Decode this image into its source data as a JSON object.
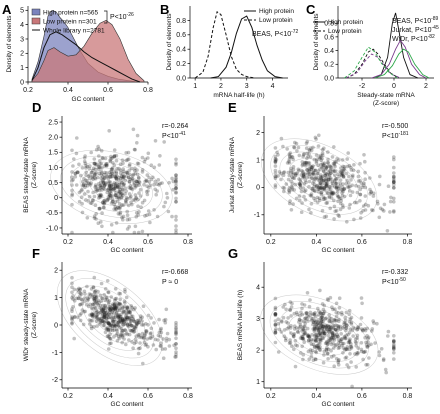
{
  "panels": {
    "A": {
      "label": "A"
    },
    "B": {
      "label": "B"
    },
    "C": {
      "label": "C"
    },
    "D": {
      "label": "D"
    },
    "E": {
      "label": "E"
    },
    "F": {
      "label": "F"
    },
    "G": {
      "label": "G"
    }
  },
  "colors": {
    "high_fill": "#7b83bd",
    "low_fill": "#c9787a",
    "beas": "#111111",
    "jurkat": "#7a3c8c",
    "widr": "#2ea84a"
  },
  "chart_data": [
    {
      "id": "A",
      "type": "area",
      "xlabel": "GC content",
      "ylabel": "Density of elements",
      "xlim": [
        0.2,
        0.8
      ],
      "ylim": [
        0,
        5.3
      ],
      "xticks": [
        "0.2",
        "0.4",
        "0.6",
        "0.8"
      ],
      "yticks": [
        "0",
        "1",
        "2",
        "3",
        "4",
        "5"
      ],
      "bracket": "P<10",
      "bracket_exp": "-26",
      "series": [
        {
          "name": "High protein n=565",
          "style": "filled-blue",
          "x": [
            0.22,
            0.25,
            0.28,
            0.3,
            0.32,
            0.34,
            0.36,
            0.38,
            0.4,
            0.43,
            0.46,
            0.5,
            0.55,
            0.6,
            0.65,
            0.7,
            0.75
          ],
          "y": [
            0.2,
            1.4,
            3.2,
            4.6,
            5.0,
            4.9,
            4.5,
            4.2,
            3.8,
            3.0,
            2.2,
            1.3,
            0.7,
            0.4,
            0.2,
            0.1,
            0.0
          ]
        },
        {
          "name": "Low protein n=301",
          "style": "filled-red",
          "x": [
            0.22,
            0.25,
            0.28,
            0.3,
            0.33,
            0.36,
            0.4,
            0.44,
            0.48,
            0.52,
            0.56,
            0.59,
            0.62,
            0.66,
            0.7,
            0.74,
            0.78
          ],
          "y": [
            0.1,
            0.6,
            1.5,
            2.2,
            2.4,
            2.1,
            1.8,
            1.9,
            2.5,
            3.4,
            4.1,
            4.3,
            4.0,
            3.0,
            1.6,
            0.6,
            0.1
          ]
        },
        {
          "name": "Whole library n=2781",
          "style": "line",
          "x": [
            0.22,
            0.25,
            0.28,
            0.31,
            0.34,
            0.37,
            0.4,
            0.44,
            0.48,
            0.52,
            0.56,
            0.6,
            0.64,
            0.68,
            0.72,
            0.76
          ],
          "y": [
            0.1,
            1.0,
            2.4,
            3.3,
            3.5,
            3.3,
            3.0,
            2.6,
            2.1,
            1.7,
            1.4,
            1.1,
            0.8,
            0.5,
            0.2,
            0.0
          ]
        }
      ]
    },
    {
      "id": "B",
      "type": "line",
      "xlabel": "mRNA half-life (h)",
      "ylabel": "Density of elements",
      "xlim": [
        0.8,
        4.6
      ],
      "ylim": [
        0,
        1.0
      ],
      "xticks": [
        "1",
        "2",
        "3",
        "4"
      ],
      "yticks": [
        "0.0",
        "0.2",
        "0.4",
        "0.6",
        "0.8"
      ],
      "annotation": "BEAS, P<10",
      "annotation_exp": "-72",
      "series": [
        {
          "name": "High protein",
          "style": "solid",
          "x": [
            1.6,
            1.9,
            2.2,
            2.4,
            2.6,
            2.8,
            3.0,
            3.2,
            3.4,
            3.6,
            3.8,
            4.1,
            4.4
          ],
          "y": [
            0.0,
            0.02,
            0.15,
            0.35,
            0.62,
            0.82,
            0.86,
            0.7,
            0.45,
            0.25,
            0.1,
            0.02,
            0.0
          ]
        },
        {
          "name": "Low protein",
          "style": "dashed",
          "x": [
            1.0,
            1.3,
            1.5,
            1.7,
            1.85,
            2.0,
            2.2,
            2.4,
            2.6,
            2.8,
            3.0,
            3.3
          ],
          "y": [
            0.0,
            0.08,
            0.3,
            0.7,
            0.92,
            0.88,
            0.6,
            0.3,
            0.12,
            0.05,
            0.02,
            0.0
          ]
        }
      ]
    },
    {
      "id": "C",
      "type": "line",
      "xlabel": "Steady-state mRNA",
      "xlabel2": "(Z-score)",
      "ylabel": "Density of elements",
      "xlim": [
        -3.5,
        2.5
      ],
      "ylim": [
        0,
        1.05
      ],
      "xticks": [
        "-2",
        "0",
        "2"
      ],
      "yticks": [
        "0.0",
        "0.2",
        "0.4",
        "0.6",
        "0.8"
      ],
      "legend": [
        "High protein",
        "Low protein"
      ],
      "stats": [
        {
          "label": "BEAS, P<10",
          "exp": "-89",
          "color": "#111111"
        },
        {
          "label": "Jurkat, P<10",
          "exp": "-45",
          "color": "#7a3c8c"
        },
        {
          "label": "WiDr, P<10",
          "exp": "-82",
          "color": "#2ea84a"
        }
      ],
      "series": [
        {
          "name": "BEAS high",
          "style": "solid",
          "color": "#111111",
          "x": [
            -1.2,
            -0.8,
            -0.4,
            -0.1,
            0.1,
            0.3,
            0.6,
            1.0,
            1.5
          ],
          "y": [
            0.0,
            0.05,
            0.3,
            0.8,
            0.95,
            0.7,
            0.3,
            0.05,
            0.0
          ]
        },
        {
          "name": "BEAS low",
          "style": "dashed",
          "color": "#111111",
          "x": [
            -3.0,
            -2.5,
            -2.0,
            -1.6,
            -1.3,
            -1.0,
            -0.6,
            -0.2,
            0.3
          ],
          "y": [
            0.0,
            0.05,
            0.2,
            0.38,
            0.42,
            0.35,
            0.2,
            0.07,
            0.0
          ]
        },
        {
          "name": "Jurkat high",
          "style": "solid",
          "color": "#7a3c8c",
          "x": [
            -1.4,
            -0.8,
            -0.3,
            0.1,
            0.4,
            0.7,
            1.1,
            1.6,
            2.0
          ],
          "y": [
            0.0,
            0.05,
            0.2,
            0.42,
            0.55,
            0.45,
            0.2,
            0.05,
            0.0
          ]
        },
        {
          "name": "Jurkat low",
          "style": "dashed",
          "color": "#7a3c8c",
          "x": [
            -3.0,
            -2.3,
            -1.8,
            -1.4,
            -1.0,
            -0.6,
            -0.2,
            0.4
          ],
          "y": [
            0.0,
            0.08,
            0.25,
            0.35,
            0.3,
            0.18,
            0.06,
            0.0
          ]
        },
        {
          "name": "WiDr high",
          "style": "solid",
          "color": "#2ea84a",
          "x": [
            -1.2,
            -0.6,
            -0.1,
            0.3,
            0.6,
            0.9,
            1.3,
            1.8,
            2.2
          ],
          "y": [
            0.0,
            0.05,
            0.18,
            0.35,
            0.42,
            0.38,
            0.2,
            0.05,
            0.0
          ]
        },
        {
          "name": "WiDr low",
          "style": "dashed",
          "color": "#2ea84a",
          "x": [
            -3.1,
            -2.5,
            -2.0,
            -1.6,
            -1.2,
            -0.8,
            -0.3,
            0.2
          ],
          "y": [
            0.0,
            0.1,
            0.3,
            0.45,
            0.38,
            0.22,
            0.08,
            0.0
          ]
        }
      ]
    },
    {
      "id": "D",
      "type": "scatter",
      "xlabel": "GC content",
      "ylabel": "BEAS steady-state mRNA",
      "ylabel2": "(Z-score)",
      "xlim": [
        0.17,
        0.82
      ],
      "ylim": [
        -1.2,
        2.7
      ],
      "xticks": [
        "0.2",
        "0.4",
        "0.6",
        "0.8"
      ],
      "yticks": [
        "-1.0",
        "-0.5",
        "0",
        "0.5",
        "1.0",
        "1.5",
        "2.0",
        "2.5"
      ],
      "r": "r=-0.264",
      "p": "P<10",
      "p_exp": "-41",
      "trend": {
        "cx": 0.4,
        "cy": 0.45,
        "slope": -1.6,
        "sx": 0.1,
        "sy": 0.6
      }
    },
    {
      "id": "E",
      "type": "scatter",
      "xlabel": "GC content",
      "ylabel": "Jurkat steady-state mRNA",
      "ylabel2": "(Z-score)",
      "xlim": [
        0.17,
        0.82
      ],
      "ylim": [
        -1.7,
        2.6
      ],
      "xticks": [
        "0.2",
        "0.4",
        "0.6",
        "0.8"
      ],
      "yticks": [
        "-1",
        "0",
        "1",
        "2"
      ],
      "r": "r=-0.500",
      "p": "P<10",
      "p_exp": "-181",
      "trend": {
        "cx": 0.4,
        "cy": 0.4,
        "slope": -4.0,
        "sx": 0.1,
        "sy": 0.55
      }
    },
    {
      "id": "F",
      "type": "scatter",
      "xlabel": "GC content",
      "ylabel": "WiDr steady-state mRNA",
      "ylabel2": "(Z-score)",
      "xlim": [
        0.17,
        0.82
      ],
      "ylim": [
        -2.3,
        2.3
      ],
      "xticks": [
        "0.2",
        "0.4",
        "0.6",
        "0.8"
      ],
      "yticks": [
        "-2",
        "-1",
        "0",
        "1",
        "2"
      ],
      "r": "r=-0.668",
      "p": "P ≈ 0",
      "trend": {
        "cx": 0.4,
        "cy": 0.4,
        "slope": -6.0,
        "sx": 0.1,
        "sy": 0.45
      }
    },
    {
      "id": "G",
      "type": "scatter",
      "xlabel": "GC content",
      "ylabel": "BEAS mRNA half-life (h)",
      "xlim": [
        0.17,
        0.82
      ],
      "ylim": [
        0.8,
        4.8
      ],
      "xticks": [
        "0.2",
        "0.4",
        "0.6",
        "0.8"
      ],
      "yticks": [
        "1",
        "2",
        "3",
        "4"
      ],
      "r": "r=-0.332",
      "p": "P<10",
      "p_exp": "-50",
      "trend": {
        "cx": 0.4,
        "cy": 2.6,
        "slope": -3.0,
        "sx": 0.1,
        "sy": 0.45
      }
    }
  ]
}
